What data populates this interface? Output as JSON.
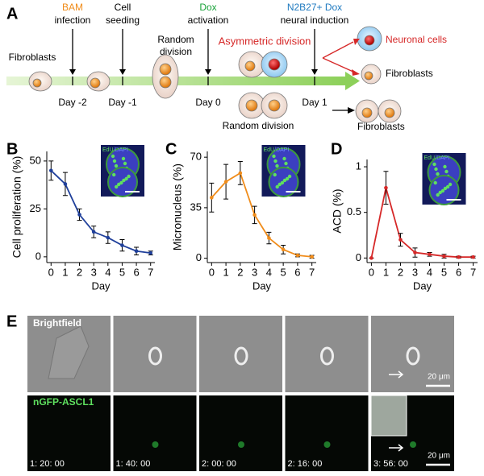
{
  "panel_a": {
    "label": "A",
    "top": [
      {
        "line1": "BAM",
        "line2": "infection"
      },
      {
        "line1": "Cell",
        "line2": "seeding"
      },
      {
        "line1": "Dox",
        "line2": "activation"
      },
      {
        "line1": "N2B27+ Dox",
        "line2": "neural induction"
      }
    ],
    "days": [
      "Day -2",
      "Day -1",
      "Day 0",
      "Day 1"
    ],
    "fibroblasts_start": "Fibroblasts",
    "random_top": {
      "line1": "Random",
      "line2": "division"
    },
    "asymmetric": "Asymmetric division",
    "random_bottom": "Random division",
    "outcomes": [
      "Neuronal cells",
      "Fibroblasts",
      "Fibroblasts"
    ]
  },
  "chart_data": [
    {
      "type": "line",
      "panel": "B",
      "ylabel": "Cell proliferation (%)",
      "xlabel": "Day",
      "color": "#1f3f9a",
      "inset_label": [
        "EdU",
        "/DAPI"
      ],
      "x": [
        0,
        1,
        2,
        3,
        4,
        5,
        6,
        7
      ],
      "values": [
        45,
        38,
        22,
        13,
        10,
        6,
        3,
        2
      ],
      "errors": [
        5,
        6,
        3,
        3,
        3,
        3,
        2,
        1
      ],
      "xlim": [
        -0.3,
        7.3
      ],
      "xticks": [
        0,
        1,
        2,
        3,
        4,
        5,
        6,
        7
      ],
      "ylim": [
        -3,
        55
      ],
      "yticks": [
        0,
        25,
        50
      ]
    },
    {
      "type": "line",
      "panel": "C",
      "ylabel": "Micronucleus (%)",
      "xlabel": "Day",
      "color": "#f08c1a",
      "inset_label": [
        "EdU",
        "/DAPI"
      ],
      "x": [
        0,
        1,
        2,
        3,
        4,
        5,
        6,
        7
      ],
      "values": [
        42,
        53,
        59,
        30,
        14,
        6,
        2,
        1
      ],
      "errors": [
        10,
        12,
        8,
        6,
        4,
        3,
        1,
        1
      ],
      "xlim": [
        -0.3,
        7.3
      ],
      "xticks": [
        0,
        1,
        2,
        3,
        4,
        5,
        6,
        7
      ],
      "ylim": [
        -3,
        74
      ],
      "yticks": [
        0,
        35,
        70
      ]
    },
    {
      "type": "line",
      "panel": "D",
      "ylabel": "ACD (%)",
      "xlabel": "Day",
      "color": "#d62828",
      "inset_label": [
        "EdU",
        "/DAPI"
      ],
      "x": [
        0,
        1,
        2,
        3,
        4,
        5,
        6,
        7
      ],
      "values": [
        0,
        0.77,
        0.2,
        0.06,
        0.04,
        0.02,
        0.01,
        0.01
      ],
      "errors": [
        0,
        0.18,
        0.07,
        0.05,
        0.02,
        0.02,
        0.01,
        0.01
      ],
      "xlim": [
        -0.3,
        7.3
      ],
      "xticks": [
        0,
        1,
        2,
        3,
        4,
        5,
        6,
        7
      ],
      "ylim": [
        -0.05,
        1.08
      ],
      "yticks": [
        0,
        0.5,
        1
      ]
    }
  ],
  "panel_e": {
    "label": "E",
    "row_labels": [
      "Brightfield",
      "nGFP-ASCL1"
    ],
    "times": [
      "1: 20: 00",
      "1: 40: 00",
      "2: 00: 00",
      "2: 16: 00",
      "3: 56: 00"
    ],
    "scale_bars": [
      "20 μm",
      "20 μm"
    ]
  }
}
